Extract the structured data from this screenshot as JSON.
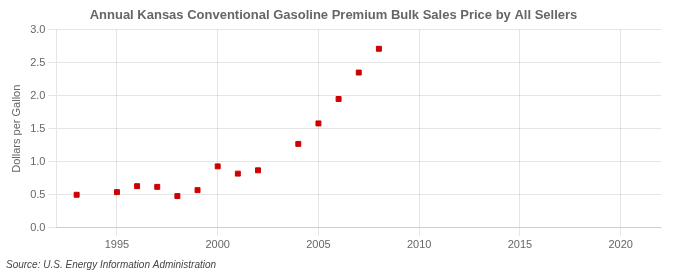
{
  "chart_data": {
    "type": "scatter",
    "title": "Annual Kansas Conventional Gasoline Premium Bulk Sales Price by All Sellers",
    "ylabel": "Dollars per Gallon",
    "source": "Source: U.S. Energy Information Administration",
    "x": [
      1993,
      1995,
      1996,
      1997,
      1998,
      1999,
      2000,
      2001,
      2002,
      2004,
      2005,
      2006,
      2007,
      2008
    ],
    "values": [
      0.5,
      0.54,
      0.63,
      0.62,
      0.48,
      0.57,
      0.93,
      0.82,
      0.87,
      1.27,
      1.58,
      1.95,
      2.35,
      2.71
    ],
    "color": "#cc0000",
    "marker": "square",
    "xlim": [
      1992,
      2022
    ],
    "ylim": [
      0.0,
      3.0
    ],
    "xticks": [
      1995,
      2000,
      2005,
      2010,
      2015,
      2020
    ],
    "yticks": [
      {
        "value": 0.0,
        "label": "0.0"
      },
      0.5,
      {
        "value": 1.0,
        "label": "1.0"
      },
      1.5,
      {
        "value": 2.0,
        "label": "2.0"
      },
      2.5,
      {
        "value": 3.0,
        "label": "3.0"
      }
    ],
    "grid": true
  }
}
